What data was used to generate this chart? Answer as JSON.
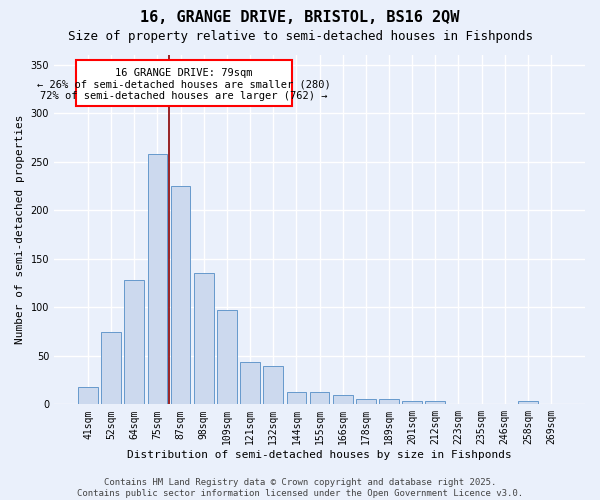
{
  "title": "16, GRANGE DRIVE, BRISTOL, BS16 2QW",
  "subtitle": "Size of property relative to semi-detached houses in Fishponds",
  "xlabel": "Distribution of semi-detached houses by size in Fishponds",
  "ylabel": "Number of semi-detached properties",
  "categories": [
    "41sqm",
    "52sqm",
    "64sqm",
    "75sqm",
    "87sqm",
    "98sqm",
    "109sqm",
    "121sqm",
    "132sqm",
    "144sqm",
    "155sqm",
    "166sqm",
    "178sqm",
    "189sqm",
    "201sqm",
    "212sqm",
    "223sqm",
    "235sqm",
    "246sqm",
    "258sqm",
    "269sqm"
  ],
  "values": [
    18,
    75,
    128,
    258,
    225,
    135,
    97,
    44,
    40,
    13,
    13,
    10,
    6,
    5,
    3,
    3,
    0,
    0,
    0,
    3,
    0
  ],
  "bar_color": "#ccd9ee",
  "bar_edge_color": "#6699cc",
  "red_line_x": 3.5,
  "annotation_label": "16 GRANGE DRIVE: 79sqm",
  "annotation_smaller": "← 26% of semi-detached houses are smaller (280)",
  "annotation_larger": "72% of semi-detached houses are larger (762) →",
  "ylim": [
    0,
    360
  ],
  "yticks": [
    0,
    50,
    100,
    150,
    200,
    250,
    300,
    350
  ],
  "background_color": "#eaf0fb",
  "grid_color": "#ffffff",
  "footer1": "Contains HM Land Registry data © Crown copyright and database right 2025.",
  "footer2": "Contains public sector information licensed under the Open Government Licence v3.0.",
  "title_fontsize": 11,
  "subtitle_fontsize": 9,
  "axis_label_fontsize": 8,
  "tick_fontsize": 7,
  "annotation_fontsize": 7.5,
  "footer_fontsize": 6.5
}
